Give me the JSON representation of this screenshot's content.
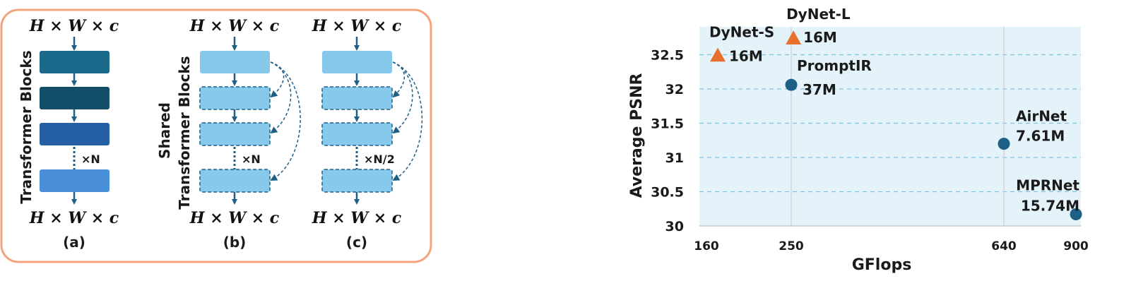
{
  "figure": {
    "colors": {
      "panel_border": "#f4a47d",
      "arrow": "#1f5f86",
      "block_dark_1": "#1b6a8c",
      "block_dark_2": "#134f68",
      "block_mid": "#2460a3",
      "block_light_blue": "#4a90d9",
      "block_light": "#86c9ea",
      "plot_bg": "#e4f2f9",
      "grid": "#7fc3e3",
      "marker_dynet": "#e8702e",
      "marker_other": "#1e5f86"
    },
    "panel_a": {
      "input": "H × W × c",
      "output": "H × W × c",
      "side_label": "Transformer Blocks",
      "repeat": "×N",
      "caption": "(a)"
    },
    "panel_b": {
      "input": "H × W × c",
      "output": "H × W × c",
      "side_label_1": "Shared",
      "side_label_2": "Transformer Blocks",
      "repeat": "×N",
      "caption": "(b)"
    },
    "panel_c": {
      "input": "H × W × c",
      "output": "H × W × c",
      "repeat": "×N/2",
      "caption": "(c)"
    }
  },
  "chart_data": {
    "type": "scatter",
    "title": "",
    "xlabel": "GFlops",
    "ylabel": "Average PSNR",
    "x_ticks": [
      160,
      250,
      640,
      900
    ],
    "y_ticks": [
      30,
      30.5,
      31,
      31.5,
      32,
      32.5
    ],
    "xlim": [
      160,
      900
    ],
    "ylim": [
      30,
      32.9
    ],
    "grid": "horizontal dashed, vertical lines at 250 and 640",
    "points": [
      {
        "name": "DyNet-S",
        "params": "16M",
        "x": 172,
        "y": 32.49,
        "marker": "triangle"
      },
      {
        "name": "DyNet-L",
        "params": "16M",
        "x": 254,
        "y": 32.74,
        "marker": "triangle"
      },
      {
        "name": "PromptIR",
        "params": "37M",
        "x": 250,
        "y": 32.06,
        "marker": "circle"
      },
      {
        "name": "AirNet",
        "params": "7.61M",
        "x": 640,
        "y": 31.2,
        "marker": "circle"
      },
      {
        "name": "MPRNet",
        "params": "15.74M",
        "x": 900,
        "y": 30.17,
        "marker": "circle"
      }
    ]
  }
}
